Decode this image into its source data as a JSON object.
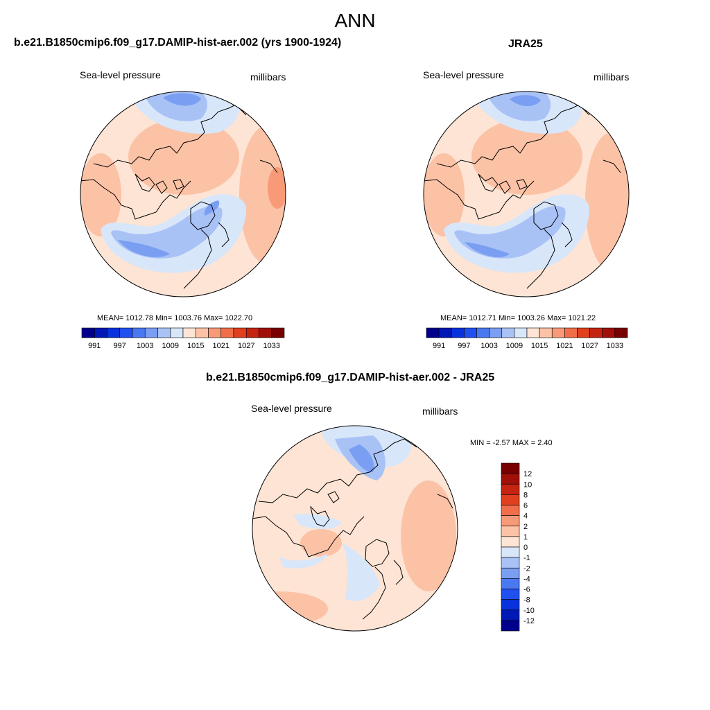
{
  "page": {
    "title": "ANN"
  },
  "panels": [
    {
      "title": "b.e21.B1850cmip6.f09_g17.DAMIP-hist-aer.002 (yrs 1900-1924)",
      "left_label": "Sea-level pressure",
      "right_label": "millibars",
      "stats": "MEAN= 1012.78  Min= 1003.76  Max= 1022.70",
      "mean": 1012.78,
      "min": 1003.76,
      "max": 1022.7
    },
    {
      "title": "JRA25",
      "left_label": "Sea-level pressure",
      "right_label": "millibars",
      "stats": "MEAN= 1012.71  Min= 1003.26  Max= 1021.22",
      "mean": 1012.71,
      "min": 1003.26,
      "max": 1021.22
    },
    {
      "title": "b.e21.B1850cmip6.f09_g17.DAMIP-hist-aer.002 - JRA25",
      "left_label": "Sea-level pressure",
      "right_label": "millibars",
      "stats": "MIN =  -2.57 MAX =   2.40",
      "min": -2.57,
      "max": 2.4
    }
  ],
  "colorbars": {
    "abs": {
      "colors": [
        "#00008c",
        "#0018b4",
        "#0832dc",
        "#2050f0",
        "#4a78f0",
        "#7a9ef2",
        "#a9c2f6",
        "#d8e6fa",
        "#fde4d4",
        "#fcc2a6",
        "#f89a78",
        "#f06e4a",
        "#e0401e",
        "#c42410",
        "#a01008",
        "#780000"
      ],
      "tick_labels": [
        "991",
        "997",
        "1003",
        "1009",
        "1015",
        "1021",
        "1027",
        "1033"
      ]
    },
    "diff": {
      "colors": [
        "#00008c",
        "#0018b4",
        "#0832dc",
        "#2050f0",
        "#4a78f0",
        "#7a9ef2",
        "#a9c2f6",
        "#d8e6fa",
        "#fde4d4",
        "#fcc2a6",
        "#f89a78",
        "#f06e4a",
        "#e0401e",
        "#c42410",
        "#a01008",
        "#780000"
      ],
      "tick_labels": [
        "12",
        "10",
        "8",
        "6",
        "4",
        "2",
        "1",
        "0",
        "-1",
        "-2",
        "-4",
        "-6",
        "-8",
        "-10",
        "-12"
      ]
    }
  }
}
